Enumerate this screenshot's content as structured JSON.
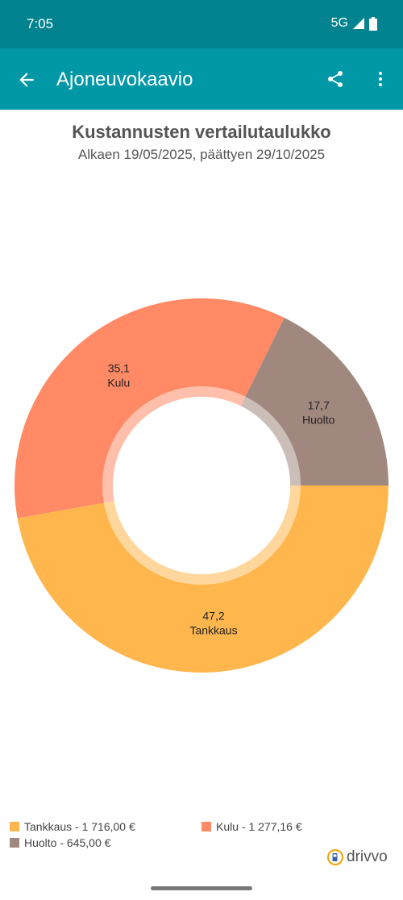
{
  "status_bar": {
    "time": "7:05",
    "network": "5G"
  },
  "app_bar": {
    "title": "Ajoneuvokaavio"
  },
  "chart_data": {
    "type": "pie",
    "title": "Kustannusten vertailutaulukko",
    "subtitle": "Alkaen 19/05/2025, päättyen 29/10/2025",
    "series": [
      {
        "name": "Tankkaus",
        "value": 47.2,
        "value_label": "47,2",
        "legend": "Tankkaus - 1 716,00 €",
        "color": "#ffb74d"
      },
      {
        "name": "Kulu",
        "value": 35.1,
        "value_label": "35,1",
        "legend": "Kulu - 1 277,16 €",
        "color": "#ff8a65"
      },
      {
        "name": "Huolto",
        "value": 17.7,
        "value_label": "17,7",
        "legend": "Huolto - 645,00 €",
        "color": "#a1887f"
      }
    ],
    "legend_position": "bottom"
  },
  "brand": {
    "name": "drivvo"
  }
}
